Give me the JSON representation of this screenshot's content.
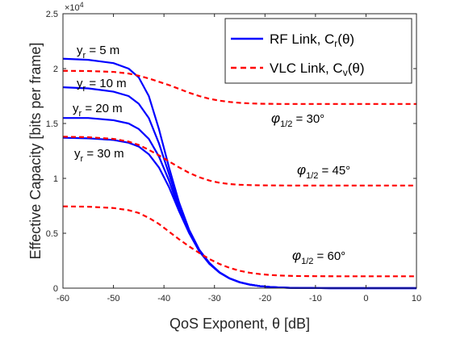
{
  "chart_data": {
    "type": "line",
    "xlabel": "QoS Exponent, θ [dB]",
    "ylabel": "Effective Capacity [bits per frame]",
    "xlim": [
      -60,
      10
    ],
    "ylim": [
      0,
      25000
    ],
    "xticks": [
      "-60",
      "-50",
      "-40",
      "-30",
      "-20",
      "-10",
      "0",
      "10"
    ],
    "yticks": [
      "0",
      "0.5",
      "1",
      "1.5",
      "2",
      "2.5"
    ],
    "y_exponent_label": "×10",
    "y_exponent_power": "4",
    "grid": false,
    "legend_position": "top-right",
    "legend": [
      {
        "name": "RF Link, C",
        "sub": "r",
        "suffix": "(θ)",
        "color": "#0000ff",
        "style": "solid"
      },
      {
        "name": "VLC Link, C",
        "sub": "v",
        "suffix": "(θ)",
        "color": "#ff0000",
        "style": "dashed"
      }
    ],
    "series": [
      {
        "group": "RF",
        "color": "#0000ff",
        "style": "solid",
        "label_main": "y",
        "label_sub": "r",
        "label_value": " = 5 m",
        "x": [
          -60,
          -55,
          -50,
          -47,
          -45,
          -43,
          -41,
          -39,
          -37,
          -35,
          -33,
          -31,
          -29,
          -27,
          -25,
          -23,
          -21,
          -19,
          -17,
          -15,
          -13,
          -11,
          -9,
          -7,
          -5,
          0,
          5,
          10
        ],
        "y": [
          20900,
          20800,
          20500,
          20000,
          19200,
          17500,
          14500,
          11000,
          7800,
          5300,
          3500,
          2300,
          1450,
          900,
          550,
          330,
          190,
          110,
          60,
          30,
          15,
          8,
          4,
          2,
          1,
          0,
          0,
          0
        ]
      },
      {
        "group": "RF",
        "color": "#0000ff",
        "style": "solid",
        "label_main": "y",
        "label_sub": "r",
        "label_value": " = 10 m",
        "x": [
          -60,
          -55,
          -50,
          -47,
          -45,
          -43,
          -41,
          -39,
          -37,
          -35,
          -33,
          -31,
          -29,
          -27,
          -25,
          -23,
          -21,
          -19,
          -17,
          -15,
          -13,
          -11,
          -9,
          -7,
          -5,
          0,
          5,
          10
        ],
        "y": [
          18300,
          18200,
          17900,
          17500,
          16800,
          15500,
          13200,
          10400,
          7500,
          5200,
          3450,
          2250,
          1430,
          890,
          540,
          325,
          185,
          105,
          58,
          30,
          15,
          8,
          4,
          2,
          1,
          0,
          0,
          0
        ]
      },
      {
        "group": "RF",
        "color": "#0000ff",
        "style": "solid",
        "label_main": "y",
        "label_sub": "r",
        "label_value": " = 20 m",
        "x": [
          -60,
          -55,
          -50,
          -47,
          -45,
          -43,
          -41,
          -39,
          -37,
          -35,
          -33,
          -31,
          -29,
          -27,
          -25,
          -23,
          -21,
          -19,
          -17,
          -15,
          -13,
          -11,
          -9,
          -7,
          -5,
          0,
          5,
          10
        ],
        "y": [
          15500,
          15500,
          15300,
          15000,
          14500,
          13600,
          12000,
          9800,
          7200,
          5100,
          3400,
          2230,
          1420,
          880,
          535,
          320,
          183,
          104,
          57,
          30,
          15,
          8,
          4,
          2,
          1,
          0,
          0,
          0
        ]
      },
      {
        "group": "RF",
        "color": "#0000ff",
        "style": "solid",
        "label_main": "y",
        "label_sub": "r",
        "label_value": " = 30 m",
        "x": [
          -60,
          -55,
          -50,
          -47,
          -45,
          -43,
          -41,
          -39,
          -37,
          -35,
          -33,
          -31,
          -29,
          -27,
          -25,
          -23,
          -21,
          -19,
          -17,
          -15,
          -13,
          -11,
          -9,
          -7,
          -5,
          0,
          5,
          10
        ],
        "y": [
          13700,
          13650,
          13500,
          13250,
          12900,
          12200,
          11000,
          9200,
          7000,
          5000,
          3350,
          2200,
          1410,
          875,
          530,
          318,
          181,
          103,
          56,
          29,
          15,
          8,
          4,
          2,
          1,
          0,
          0,
          0
        ]
      },
      {
        "group": "VLC",
        "color": "#ff0000",
        "style": "dashed",
        "label_main": "φ",
        "label_sub": "1/2",
        "label_value": " = 30°",
        "x": [
          -60,
          -55,
          -50,
          -47,
          -45,
          -43,
          -41,
          -39,
          -37,
          -35,
          -33,
          -31,
          -29,
          -27,
          -25,
          -23,
          -21,
          -19,
          -17,
          -15,
          -10,
          -5,
          0,
          5,
          10
        ],
        "y": [
          19800,
          19780,
          19700,
          19550,
          19350,
          19100,
          18800,
          18500,
          18150,
          17800,
          17500,
          17250,
          17080,
          16960,
          16880,
          16830,
          16800,
          16790,
          16780,
          16780,
          16780,
          16780,
          16780,
          16780,
          16780
        ]
      },
      {
        "group": "VLC",
        "color": "#ff0000",
        "style": "dashed",
        "label_main": "φ",
        "label_sub": "1/2",
        "label_value": " = 45°",
        "x": [
          -60,
          -55,
          -50,
          -47,
          -45,
          -43,
          -41,
          -39,
          -37,
          -35,
          -33,
          -31,
          -29,
          -27,
          -25,
          -23,
          -21,
          -19,
          -17,
          -15,
          -13,
          -10,
          -5,
          0,
          5,
          10
        ],
        "y": [
          13800,
          13750,
          13600,
          13350,
          13050,
          12600,
          12100,
          11550,
          11000,
          10500,
          10100,
          9800,
          9600,
          9480,
          9420,
          9390,
          9370,
          9360,
          9355,
          9350,
          9350,
          9350,
          9350,
          9350,
          9350,
          9350
        ]
      },
      {
        "group": "VLC",
        "color": "#ff0000",
        "style": "dashed",
        "label_main": "φ",
        "label_sub": "1/2",
        "label_value": " = 60°",
        "x": [
          -60,
          -55,
          -50,
          -47,
          -45,
          -43,
          -41,
          -39,
          -37,
          -35,
          -33,
          -31,
          -29,
          -27,
          -25,
          -23,
          -21,
          -19,
          -17,
          -15,
          -13,
          -10,
          -5,
          0,
          5,
          10
        ],
        "y": [
          7450,
          7420,
          7300,
          7100,
          6850,
          6400,
          5850,
          5150,
          4450,
          3800,
          3200,
          2650,
          2200,
          1850,
          1580,
          1400,
          1280,
          1200,
          1150,
          1120,
          1100,
          1090,
          1080,
          1080,
          1080,
          1080
        ]
      }
    ]
  }
}
